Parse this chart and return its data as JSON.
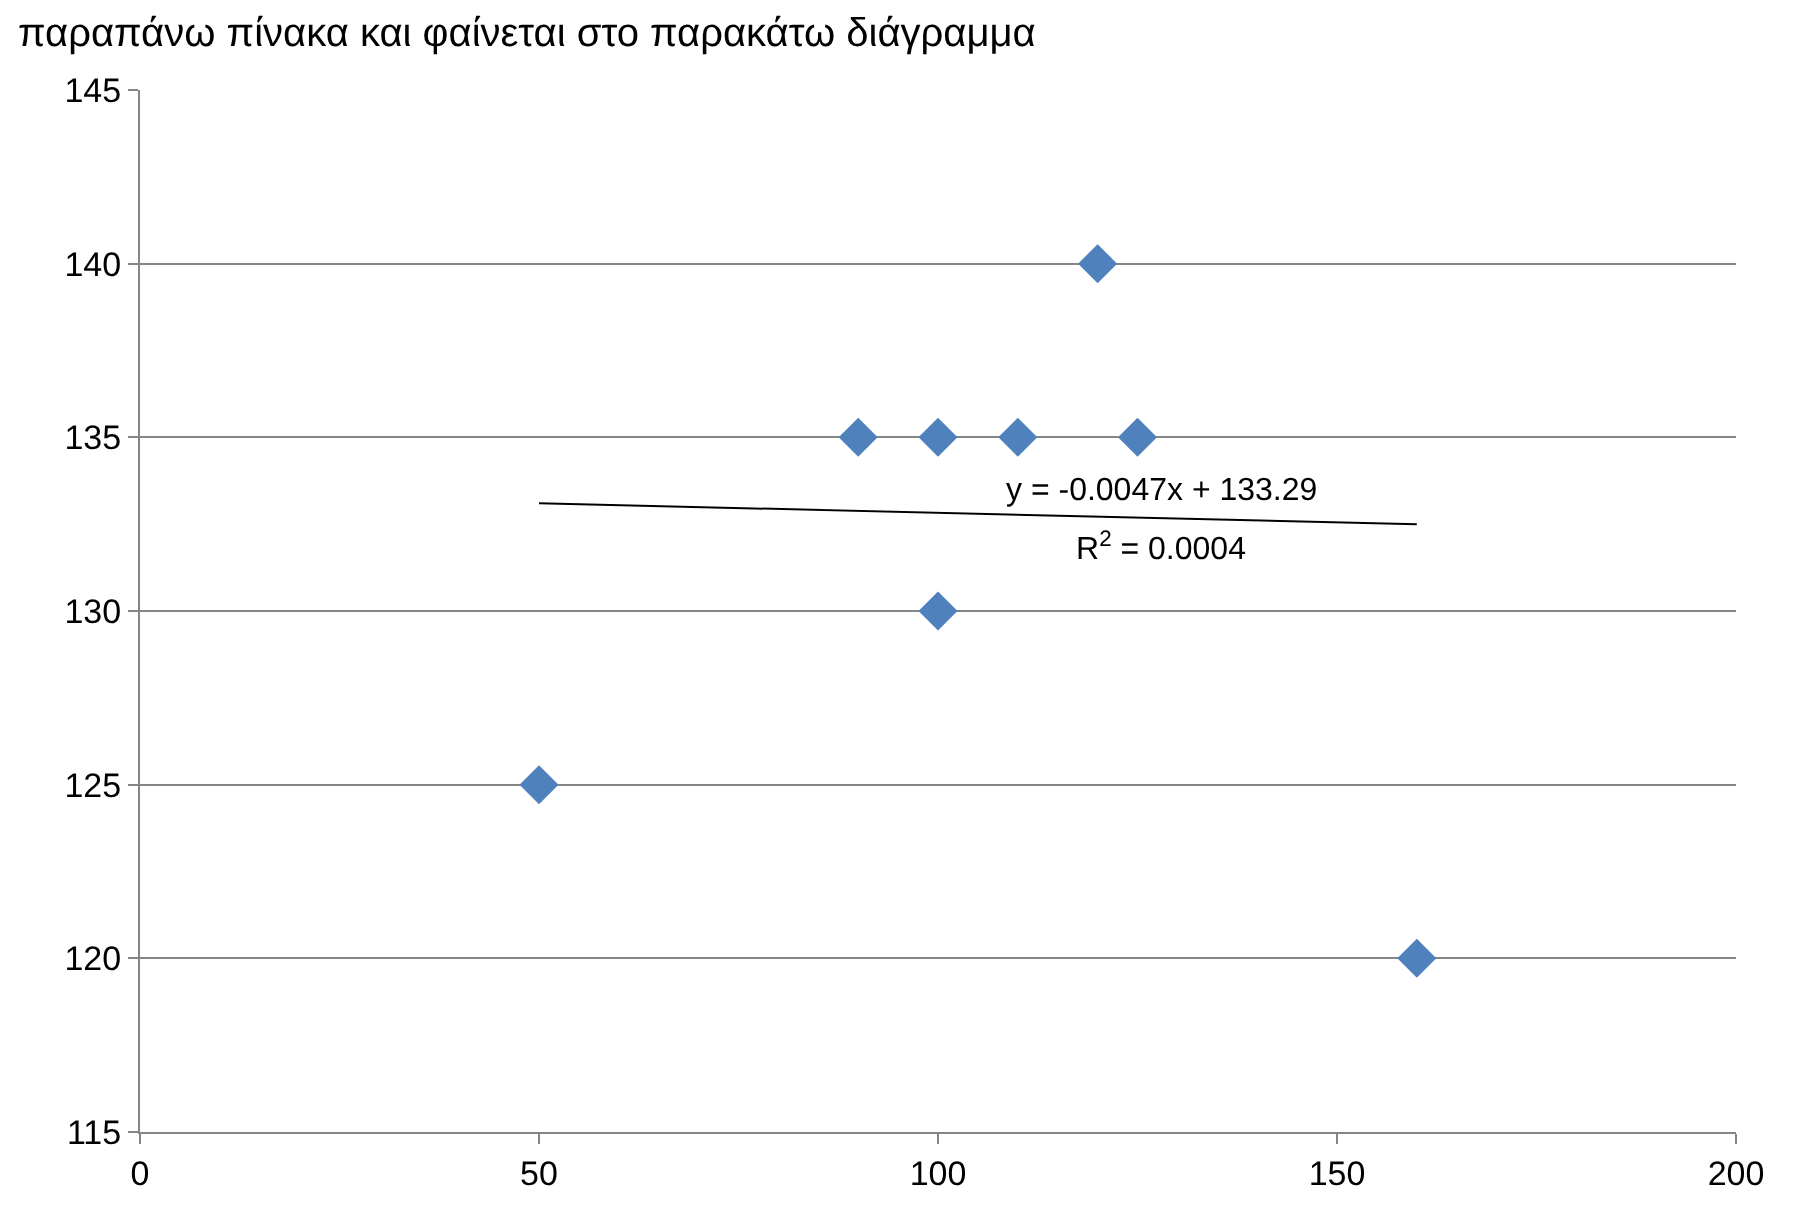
{
  "chart_data": {
    "type": "scatter",
    "title": "παραπάνω πίνακα και φαίνεται στο παρακάτω διάγραμμα",
    "series": [
      {
        "color": "#4f81bd",
        "x": [
          50,
          90,
          100,
          100,
          110,
          120,
          125,
          160
        ],
        "values": [
          125,
          135,
          135,
          130,
          135,
          140,
          135,
          120
        ],
        "marker": "diamond"
      },
      {
        "type": "line",
        "color": "#000000",
        "x": [
          50,
          160
        ],
        "values": [
          133.1,
          132.5
        ],
        "marker": "none"
      }
    ],
    "annotations": [
      "y = -0.0047x + 133.29",
      "R$^{2}$ = 0.0004"
    ],
    "xlim": [
      0,
      200
    ],
    "xticks": [
      0,
      50,
      100,
      150,
      200
    ],
    "ylim": [
      115,
      145
    ],
    "yticks": [
      115,
      120,
      125,
      130,
      135,
      140,
      145
    ],
    "grid": "y",
    "legend": false
  }
}
